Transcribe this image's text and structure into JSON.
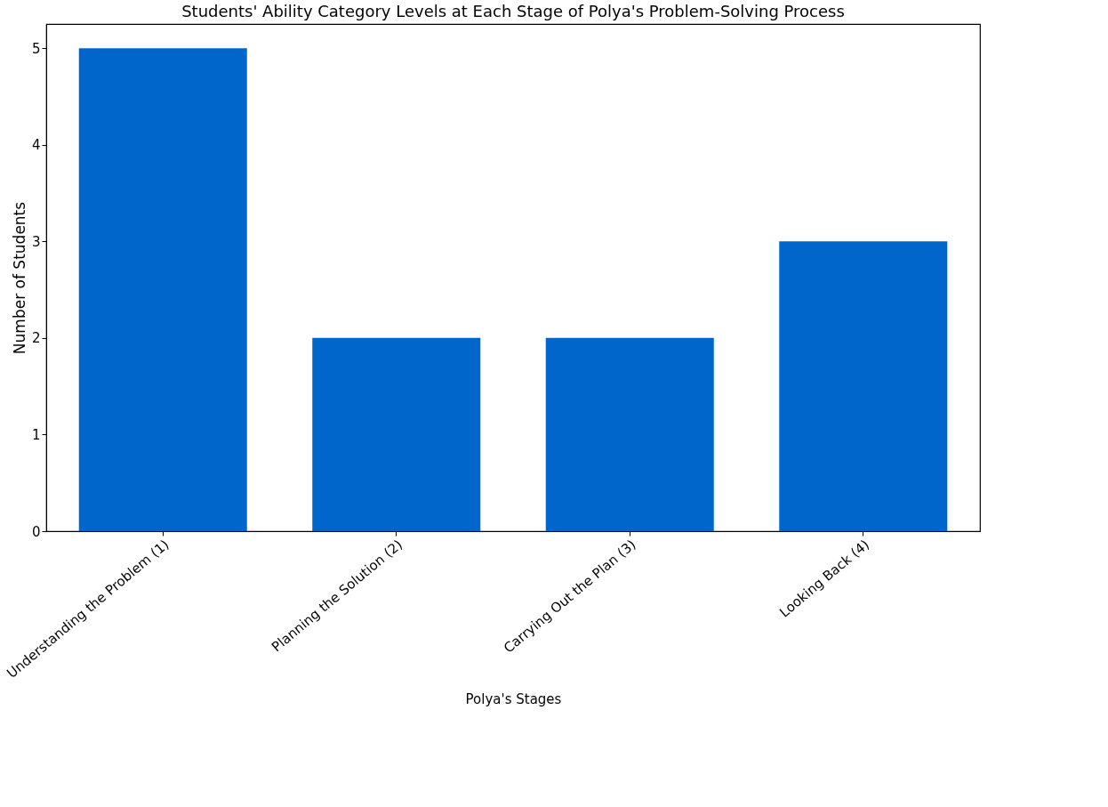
{
  "chart_data": {
    "type": "bar",
    "title": "Students' Ability Category Levels at Each Stage of Polya's Problem-Solving Process",
    "xlabel": "Polya's Stages",
    "ylabel": "Number of Students",
    "categories": [
      "Understanding the Problem (1)",
      "Planning the Solution (2)",
      "Carrying Out the Plan (3)",
      "Looking Back (4)"
    ],
    "values": [
      5,
      2,
      2,
      3
    ],
    "color": "#0066cc",
    "ylim": [
      0,
      5.25
    ],
    "yticks": [
      0,
      1,
      2,
      3,
      4,
      5
    ],
    "grid": false
  }
}
